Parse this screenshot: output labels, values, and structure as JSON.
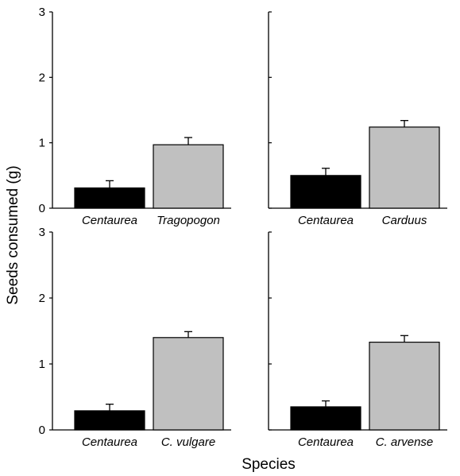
{
  "chart_data": {
    "type": "bar",
    "ylabel": "Seeds consumed (g)",
    "xlabel": "Species",
    "ylim": [
      0,
      3
    ],
    "yticks": [
      "0",
      "1",
      "2",
      "3"
    ],
    "bar_colors": [
      "#000000",
      "#c0c0c0"
    ],
    "panels": [
      {
        "categories": [
          "Centaurea",
          "Tragopogon"
        ],
        "values": [
          0.31,
          0.97
        ],
        "errors": [
          0.11,
          0.11
        ]
      },
      {
        "categories": [
          "Centaurea",
          "Carduus"
        ],
        "values": [
          0.5,
          1.24
        ],
        "errors": [
          0.11,
          0.1
        ]
      },
      {
        "categories": [
          "Centaurea",
          "C. vulgare"
        ],
        "values": [
          0.29,
          1.4
        ],
        "errors": [
          0.1,
          0.09
        ]
      },
      {
        "categories": [
          "Centaurea",
          "C. arvense"
        ],
        "values": [
          0.35,
          1.33
        ],
        "errors": [
          0.09,
          0.1
        ]
      }
    ]
  }
}
